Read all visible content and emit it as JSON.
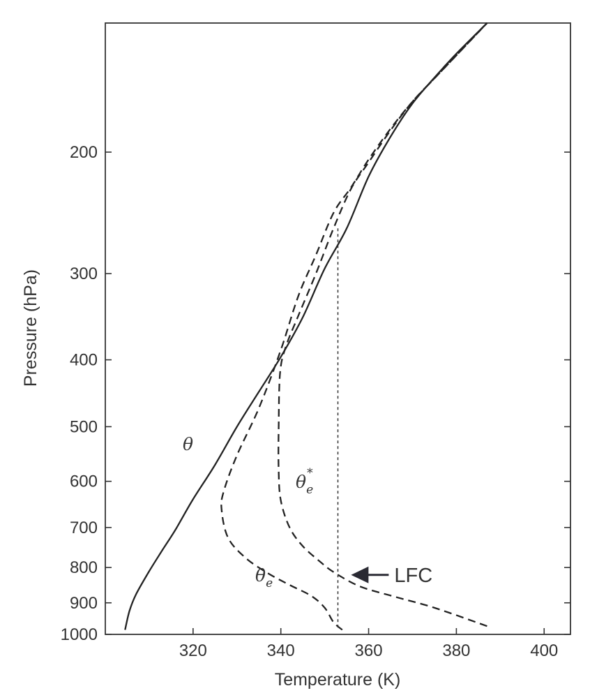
{
  "chart_data": {
    "type": "line",
    "xlabel": "Temperature (K)",
    "ylabel": "Pressure (hPa)",
    "xlim": [
      300,
      406
    ],
    "ylim": [
      1000,
      130
    ],
    "y_scale": "log",
    "x_ticks": [
      320,
      340,
      360,
      380,
      400
    ],
    "x_tick_labels": [
      "320",
      "340",
      "360",
      "380",
      "400"
    ],
    "y_ticks": [
      200,
      300,
      400,
      500,
      600,
      700,
      800,
      900,
      1000
    ],
    "y_tick_labels": [
      "200",
      "300",
      "400",
      "500",
      "600",
      "700",
      "800",
      "900",
      "1000"
    ],
    "grid": false,
    "series": [
      {
        "name": "θ",
        "label_base": "θ",
        "label_sub": "",
        "label_sup": "",
        "style": "solid",
        "points": [
          [
            304.5,
            985
          ],
          [
            305.5,
            925
          ],
          [
            307,
            875
          ],
          [
            310,
            810
          ],
          [
            313,
            755
          ],
          [
            316,
            705
          ],
          [
            320,
            637
          ],
          [
            325,
            568
          ],
          [
            330,
            500
          ],
          [
            335,
            445
          ],
          [
            340,
            396
          ],
          [
            345,
            347
          ],
          [
            350,
            295
          ],
          [
            355,
            258
          ],
          [
            360,
            217
          ],
          [
            365,
            190
          ],
          [
            370,
            170
          ],
          [
            375,
            156
          ],
          [
            380,
            144
          ],
          [
            387,
            130
          ]
        ]
      },
      {
        "name": "θe",
        "label_base": "θ",
        "label_sub": "e",
        "label_sup": "",
        "style": "dashed",
        "points": [
          [
            354,
            985
          ],
          [
            352,
            960
          ],
          [
            350,
            915
          ],
          [
            347,
            880
          ],
          [
            342,
            848
          ],
          [
            337,
            815
          ],
          [
            332,
            775
          ],
          [
            328,
            725
          ],
          [
            326.5,
            660
          ],
          [
            327,
            620
          ],
          [
            330,
            550
          ],
          [
            335,
            470
          ],
          [
            340,
            387
          ],
          [
            344,
            323
          ],
          [
            348,
            282
          ],
          [
            352,
            245
          ],
          [
            356,
            225
          ],
          [
            360,
            205
          ],
          [
            365,
            185
          ],
          [
            370,
            169
          ],
          [
            376,
            154
          ],
          [
            387,
            130
          ]
        ]
      },
      {
        "name": "θe*",
        "label_base": "θ",
        "label_sub": "e",
        "label_sup": "*",
        "style": "dashed",
        "points": [
          [
            387,
            973
          ],
          [
            375,
            915
          ],
          [
            366,
            882
          ],
          [
            358,
            852
          ],
          [
            352,
            812
          ],
          [
            349,
            785
          ],
          [
            345,
            745
          ],
          [
            342,
            700
          ],
          [
            340,
            640
          ],
          [
            339.5,
            580
          ],
          [
            339.5,
            500
          ],
          [
            339.8,
            420
          ],
          [
            341,
            385
          ],
          [
            344,
            345
          ],
          [
            348,
            300
          ],
          [
            352,
            258
          ],
          [
            356,
            226
          ],
          [
            360,
            207
          ],
          [
            365,
            186
          ],
          [
            370,
            169
          ],
          [
            376,
            154
          ],
          [
            387,
            130
          ]
        ]
      }
    ],
    "lfc_vertical_line": {
      "x": 353,
      "p_top": 258,
      "p_bottom": 985
    },
    "annotation": {
      "text": "LFC",
      "arrow_x": 356,
      "arrow_p": 820
    }
  }
}
